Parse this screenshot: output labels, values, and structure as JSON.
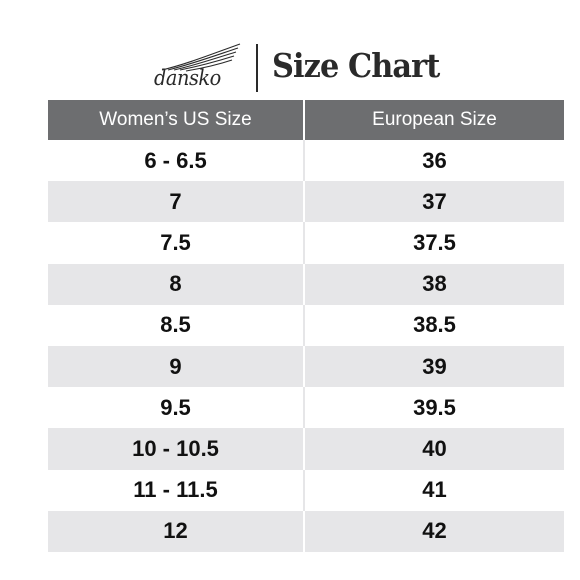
{
  "brand": {
    "logo_text": "dansko",
    "title": "Size Chart"
  },
  "table": {
    "headers": [
      "Women’s US Size",
      "European Size"
    ],
    "rows": [
      [
        "6 - 6.5",
        "36"
      ],
      [
        "7",
        "37"
      ],
      [
        "7.5",
        "37.5"
      ],
      [
        "8",
        "38"
      ],
      [
        "8.5",
        "38.5"
      ],
      [
        "9",
        "39"
      ],
      [
        "9.5",
        "39.5"
      ],
      [
        "10 - 10.5",
        "40"
      ],
      [
        "11 - 11.5",
        "41"
      ],
      [
        "12",
        "42"
      ]
    ]
  },
  "colors": {
    "header_bg": "#6d6e70",
    "stripe_bg": "#e6e6e8",
    "text": "#111111"
  }
}
